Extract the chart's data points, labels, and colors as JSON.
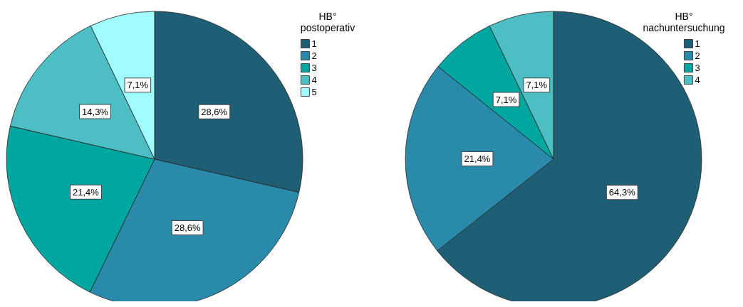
{
  "chart_data": [
    {
      "type": "pie",
      "legend_title": "HB°\npostoperativ",
      "categories": [
        "1",
        "2",
        "3",
        "4",
        "5"
      ],
      "values": [
        28.6,
        28.6,
        21.4,
        14.3,
        7.1
      ],
      "colors": [
        "#1f5f75",
        "#2a8aaa",
        "#00a6a0",
        "#4dbfc4",
        "#a0fcff"
      ],
      "value_labels": [
        "28,6%",
        "28,6%",
        "21,4%",
        "14,3%",
        "7,1%"
      ],
      "legend": "top right"
    },
    {
      "type": "pie",
      "legend_title": "HB°\nnachuntersuchung",
      "categories": [
        "1",
        "2",
        "3",
        "4"
      ],
      "values": [
        64.3,
        21.4,
        7.1,
        7.1
      ],
      "colors": [
        "#1f5f75",
        "#2a8aaa",
        "#00a6a0",
        "#4dbfc4"
      ],
      "value_labels": [
        "64,3%",
        "21,4%",
        "7,1%",
        "7,1%"
      ],
      "legend": "top right"
    }
  ]
}
